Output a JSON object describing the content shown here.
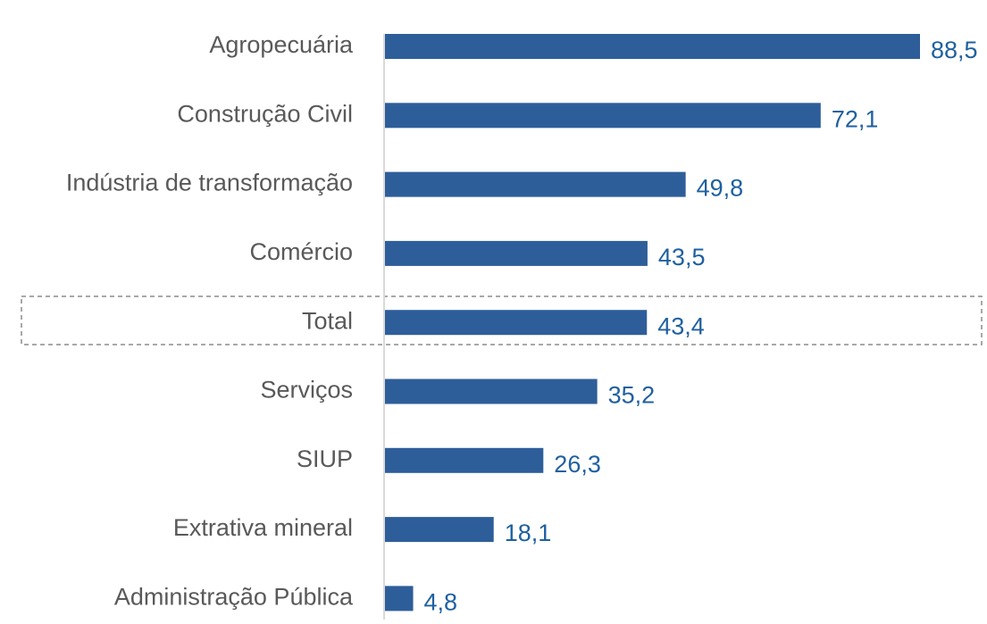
{
  "chart_data": {
    "type": "hbar",
    "categories": [
      "Agropecuária",
      "Construção Civil",
      "Indústria de transformação",
      "Comércio",
      "Total",
      "Serviços",
      "SIUP",
      "Extrativa mineral",
      "Administração Pública"
    ],
    "values": [
      88.5,
      72.1,
      49.8,
      43.5,
      43.4,
      35.2,
      26.3,
      18.1,
      4.8
    ],
    "value_labels": [
      "88,5",
      "72,1",
      "49,8",
      "43,5",
      "43,4",
      "35,2",
      "26,3",
      "18,1",
      "4,8"
    ],
    "color": "#2e5e9a"
  }
}
